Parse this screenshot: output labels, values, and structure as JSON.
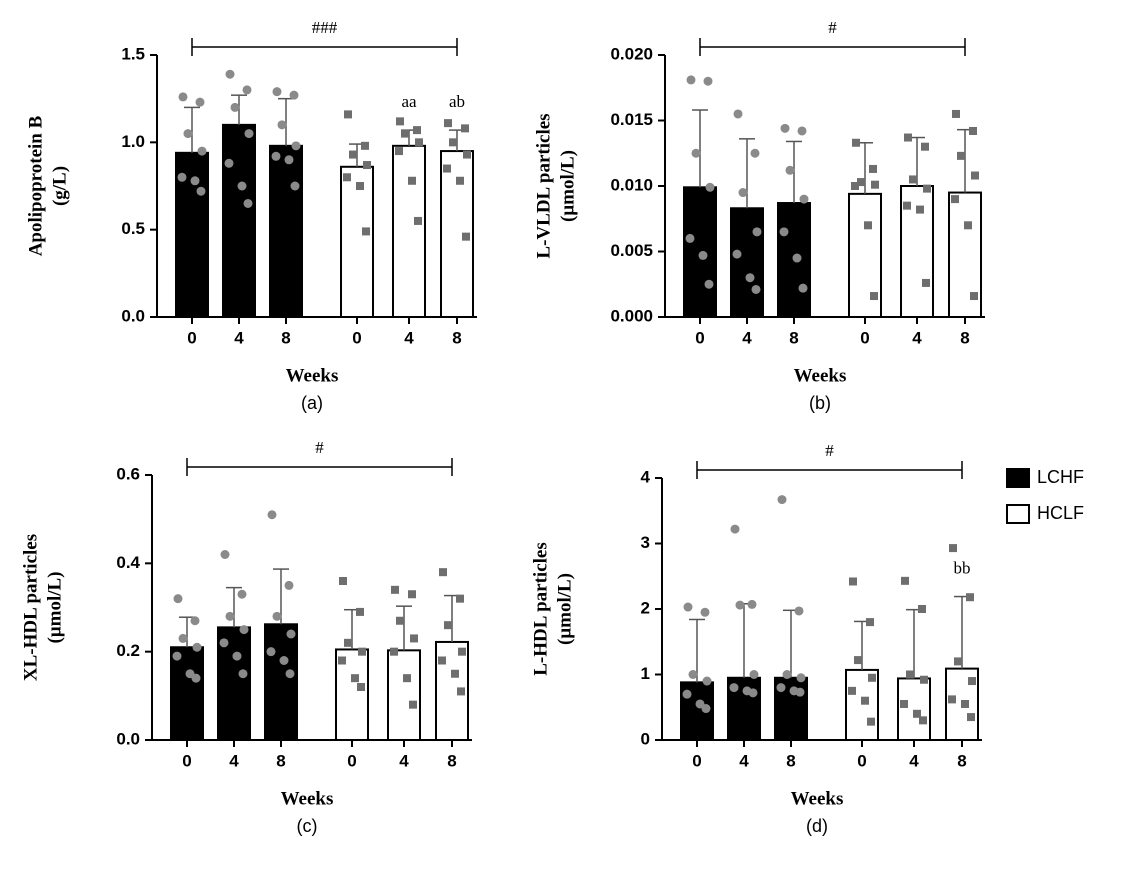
{
  "legend": [
    {
      "name": "LCHF",
      "color": "#000000"
    },
    {
      "name": "HCLF",
      "color": "#ffffff"
    }
  ],
  "chart_data": [
    {
      "type": "bar",
      "panel": "(a)",
      "ylabel": [
        "Apolipoprotein B",
        "(g/L)"
      ],
      "xlabel": "Weeks",
      "categories": [
        "0",
        "4",
        "8"
      ],
      "bracket": "###",
      "ylim": [
        0,
        1.5
      ],
      "yticks": [
        {
          "value": 0,
          "label": "0.0"
        },
        {
          "value": 0.5,
          "label": "0.5"
        },
        {
          "value": 1,
          "label": "1.0"
        },
        {
          "value": 1.5,
          "label": "1.5"
        }
      ],
      "series": [
        {
          "color": "#000000",
          "point_color": "#8a8a8a",
          "marker": "circle",
          "values": [
            0.94,
            1.1,
            0.98
          ],
          "errors": [
            0.26,
            0.17,
            0.27
          ],
          "points": [
            [
              1.26,
              1.23,
              1.05,
              0.95,
              0.8,
              0.78,
              0.72
            ],
            [
              1.39,
              1.3,
              1.2,
              1.05,
              0.88,
              0.75,
              0.65
            ],
            [
              1.29,
              1.27,
              1.1,
              0.98,
              0.92,
              0.9,
              0.75
            ]
          ],
          "bar_labels": [
            null,
            null,
            null
          ]
        },
        {
          "color": "#ffffff",
          "point_color": "#6e6e6e",
          "marker": "square",
          "values": [
            0.86,
            0.98,
            0.95
          ],
          "errors": [
            0.13,
            0.09,
            0.12
          ],
          "points": [
            [
              1.16,
              0.98,
              0.93,
              0.87,
              0.8,
              0.75,
              0.49
            ],
            [
              1.12,
              1.07,
              1.05,
              1.0,
              0.95,
              0.78,
              0.55
            ],
            [
              1.11,
              1.08,
              1.0,
              0.93,
              0.85,
              0.78,
              0.46
            ]
          ],
          "bar_labels": [
            null,
            "aa",
            "ab"
          ]
        }
      ]
    },
    {
      "type": "bar",
      "panel": "(b)",
      "ylabel": [
        "L-VLDL particles",
        "(μmol/L)"
      ],
      "xlabel": "Weeks",
      "categories": [
        "0",
        "4",
        "8"
      ],
      "bracket": "#",
      "ylim": [
        0,
        0.02
      ],
      "yticks": [
        {
          "value": 0,
          "label": "0.000"
        },
        {
          "value": 0.005,
          "label": "0.005"
        },
        {
          "value": 0.01,
          "label": "0.010"
        },
        {
          "value": 0.015,
          "label": "0.015"
        },
        {
          "value": 0.02,
          "label": "0.020"
        }
      ],
      "series": [
        {
          "color": "#000000",
          "point_color": "#8a8a8a",
          "marker": "circle",
          "values": [
            0.0099,
            0.0083,
            0.0087
          ],
          "errors": [
            0.0059,
            0.0053,
            0.0047
          ],
          "points": [
            [
              0.0181,
              0.018,
              0.0125,
              0.0099,
              0.006,
              0.0047,
              0.0025
            ],
            [
              0.0155,
              0.0125,
              0.0095,
              0.0065,
              0.0048,
              0.003,
              0.0021
            ],
            [
              0.0144,
              0.0142,
              0.0112,
              0.009,
              0.0065,
              0.0045,
              0.0022
            ]
          ],
          "bar_labels": [
            null,
            null,
            null
          ]
        },
        {
          "color": "#ffffff",
          "point_color": "#6e6e6e",
          "marker": "square",
          "values": [
            0.0094,
            0.01,
            0.0095
          ],
          "errors": [
            0.0039,
            0.0037,
            0.0048
          ],
          "points": [
            [
              0.0133,
              0.0113,
              0.0103,
              0.0101,
              0.01,
              0.007,
              0.0016
            ],
            [
              0.0137,
              0.013,
              0.0105,
              0.0098,
              0.0085,
              0.0082,
              0.0026
            ],
            [
              0.0155,
              0.0142,
              0.0123,
              0.0108,
              0.009,
              0.007,
              0.0016
            ]
          ],
          "bar_labels": [
            null,
            null,
            null
          ]
        }
      ]
    },
    {
      "type": "bar",
      "panel": "(c)",
      "ylabel": [
        "XL-HDL particles",
        "(μmol/L)"
      ],
      "xlabel": "Weeks",
      "categories": [
        "0",
        "4",
        "8"
      ],
      "bracket": "#",
      "ylim": [
        0,
        0.6
      ],
      "yticks": [
        {
          "value": 0,
          "label": "0.0"
        },
        {
          "value": 0.2,
          "label": "0.2"
        },
        {
          "value": 0.4,
          "label": "0.4"
        },
        {
          "value": 0.6,
          "label": "0.6"
        }
      ],
      "series": [
        {
          "color": "#000000",
          "point_color": "#8a8a8a",
          "marker": "circle",
          "values": [
            0.21,
            0.255,
            0.262
          ],
          "errors": [
            0.068,
            0.09,
            0.125
          ],
          "points": [
            [
              0.32,
              0.27,
              0.23,
              0.21,
              0.19,
              0.15,
              0.14
            ],
            [
              0.42,
              0.33,
              0.28,
              0.25,
              0.22,
              0.19,
              0.15
            ],
            [
              0.51,
              0.35,
              0.28,
              0.24,
              0.2,
              0.18,
              0.15
            ]
          ],
          "bar_labels": [
            null,
            null,
            null
          ]
        },
        {
          "color": "#ffffff",
          "point_color": "#6e6e6e",
          "marker": "square",
          "values": [
            0.205,
            0.203,
            0.222
          ],
          "errors": [
            0.09,
            0.1,
            0.105
          ],
          "points": [
            [
              0.36,
              0.29,
              0.22,
              0.2,
              0.18,
              0.14,
              0.12
            ],
            [
              0.34,
              0.33,
              0.27,
              0.23,
              0.2,
              0.14,
              0.08
            ],
            [
              0.38,
              0.32,
              0.26,
              0.2,
              0.18,
              0.15,
              0.11
            ]
          ],
          "bar_labels": [
            null,
            null,
            null
          ]
        }
      ]
    },
    {
      "type": "bar",
      "panel": "(d)",
      "ylabel": [
        "L-HDL particles",
        "(μmol/L)"
      ],
      "xlabel": "Weeks",
      "categories": [
        "0",
        "4",
        "8"
      ],
      "bracket": "#",
      "ylim": [
        0,
        4
      ],
      "yticks": [
        0,
        1,
        2,
        3,
        4
      ],
      "series": [
        {
          "color": "#000000",
          "point_color": "#8a8a8a",
          "marker": "circle",
          "values": [
            0.88,
            0.95,
            0.95
          ],
          "errors": [
            0.96,
            1.13,
            1.03
          ],
          "points": [
            [
              2.03,
              1.95,
              1.0,
              0.9,
              0.7,
              0.55,
              0.48
            ],
            [
              3.22,
              2.07,
              2.06,
              1.0,
              0.8,
              0.75,
              0.72
            ],
            [
              3.67,
              1.97,
              1.0,
              0.95,
              0.8,
              0.75,
              0.73
            ]
          ],
          "bar_labels": [
            null,
            null,
            null
          ]
        },
        {
          "color": "#ffffff",
          "point_color": "#6e6e6e",
          "marker": "square",
          "values": [
            1.07,
            0.94,
            1.09
          ],
          "errors": [
            0.74,
            1.05,
            1.1
          ],
          "points": [
            [
              2.42,
              1.8,
              1.22,
              0.95,
              0.75,
              0.6,
              0.28
            ],
            [
              2.43,
              2.0,
              1.0,
              0.92,
              0.55,
              0.4,
              0.3
            ],
            [
              2.93,
              2.18,
              1.2,
              0.9,
              0.62,
              0.55,
              0.35
            ]
          ],
          "bar_labels": [
            null,
            null,
            "bb"
          ]
        }
      ]
    }
  ]
}
